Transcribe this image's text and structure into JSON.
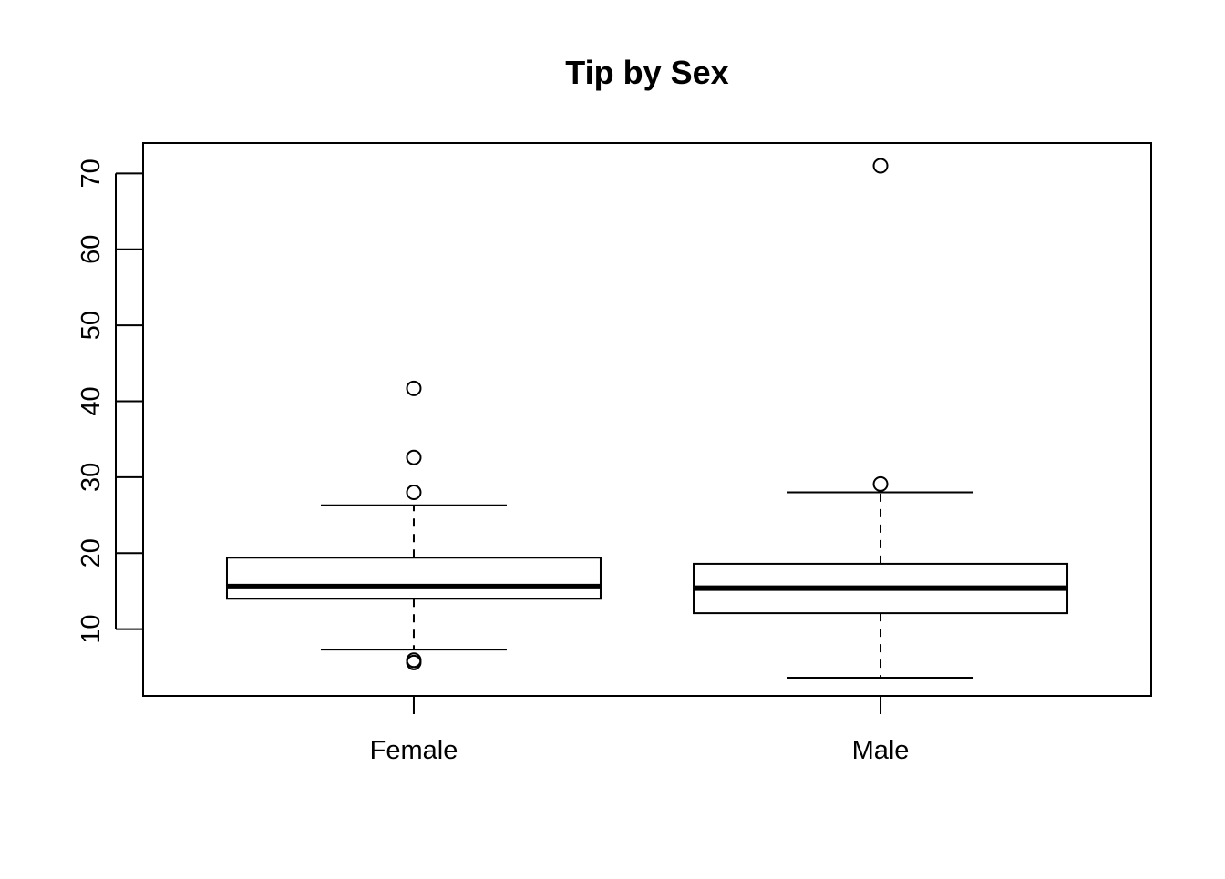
{
  "chart_data": {
    "type": "box",
    "title": "Tip by Sex",
    "xlabel": "",
    "ylabel": "",
    "categories": [
      "Female",
      "Male"
    ],
    "ylim": [
      1.2,
      74
    ],
    "y_ticks": [
      10,
      20,
      30,
      40,
      50,
      60,
      70
    ],
    "grid": false,
    "boxes": [
      {
        "category": "Female",
        "whisker_low": 7.3,
        "q1": 14.0,
        "median": 15.6,
        "q3": 19.4,
        "whisker_high": 26.3,
        "outliers": [
          41.7,
          32.6,
          28.0,
          5.9,
          5.6
        ]
      },
      {
        "category": "Male",
        "whisker_low": 3.6,
        "q1": 12.1,
        "median": 15.4,
        "q3": 18.6,
        "whisker_high": 28.0,
        "outliers": [
          71.0,
          29.1
        ]
      }
    ]
  }
}
